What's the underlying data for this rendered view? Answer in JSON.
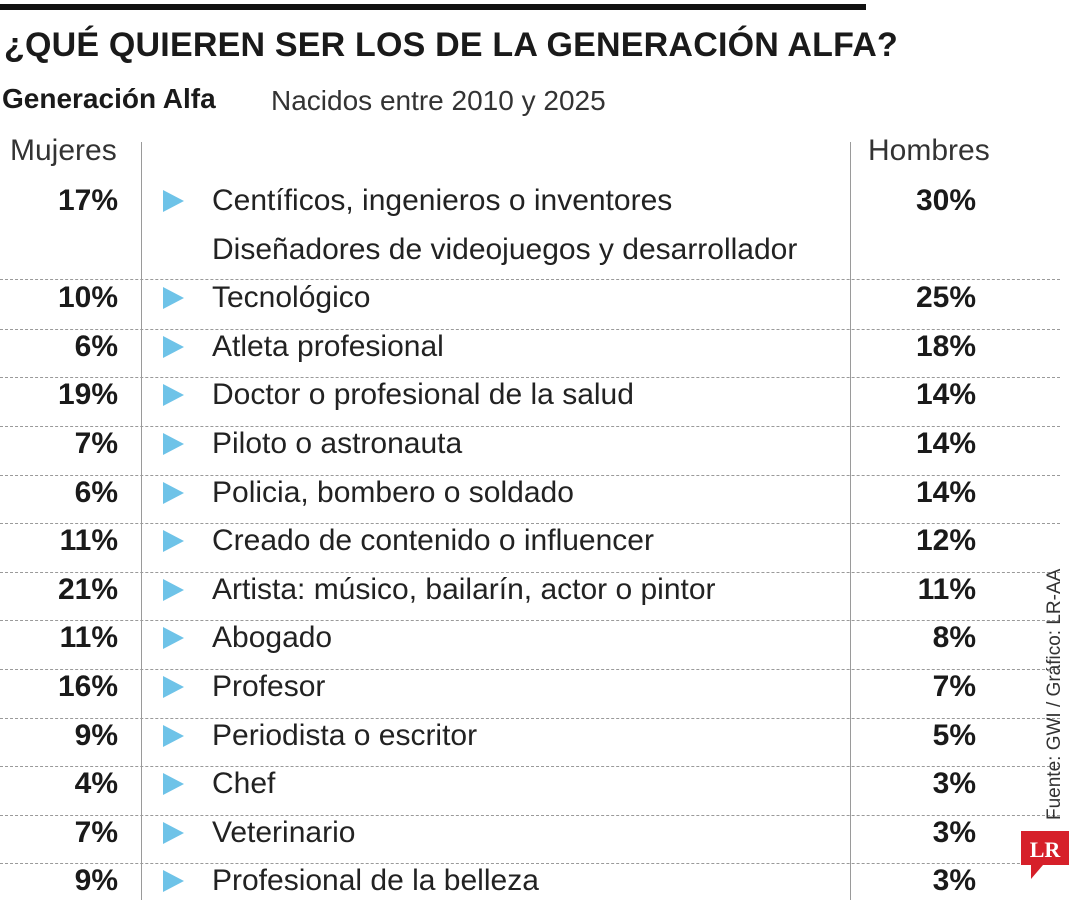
{
  "header": {
    "title": "¿QUÉ QUIEREN SER LOS DE LA GENERACIÓN ALFA?",
    "subtitle_bold": "Generación Alfa",
    "subtitle": "Nacidos entre 2010 y 2025"
  },
  "columns": {
    "left": "Mujeres",
    "right": "Hombres"
  },
  "chart_data": {
    "type": "table",
    "title": "¿QUÉ QUIEREN SER LOS DE LA GENERACIÓN ALFA?",
    "columns": [
      "Mujeres",
      "",
      "Hombres"
    ],
    "rows": [
      {
        "women": "17%",
        "label": "Centíficos, ingenieros o inventores",
        "men": "30%"
      },
      {
        "women": "10%",
        "label": "Diseñadores de videojuegos y desarrollador",
        "label2": "Tecnológico",
        "men": "25%"
      },
      {
        "women": "6%",
        "label": "Atleta profesional",
        "men": "18%"
      },
      {
        "women": "19%",
        "label": "Doctor o profesional de la salud",
        "men": "14%"
      },
      {
        "women": "7%",
        "label": "Piloto o astronauta",
        "men": "14%"
      },
      {
        "women": "6%",
        "label": "Policia, bombero o soldado",
        "men": "14%"
      },
      {
        "women": "11%",
        "label": "Creado de contenido o influencer",
        "men": "12%"
      },
      {
        "women": "21%",
        "label": "Artista: músico, bailarín, actor o pintor",
        "men": "11%"
      },
      {
        "women": "11%",
        "label": "Abogado",
        "men": "8%"
      },
      {
        "women": "16%",
        "label": "Profesor",
        "men": "7%"
      },
      {
        "women": "9%",
        "label": "Periodista o escritor",
        "men": "5%"
      },
      {
        "women": "4%",
        "label": "Chef",
        "men": "3%"
      },
      {
        "women": "7%",
        "label": "Veterinario",
        "men": "3%"
      },
      {
        "women": "9%",
        "label": "Profesional de la belleza",
        "men": "3%"
      }
    ]
  },
  "source": "Fuente: GWI / Gráfico: LR-AA",
  "logo": {
    "text": "LR",
    "color": "#d6202a"
  },
  "colors": {
    "arrow": "#6ec3e8",
    "rule": "#111111"
  }
}
